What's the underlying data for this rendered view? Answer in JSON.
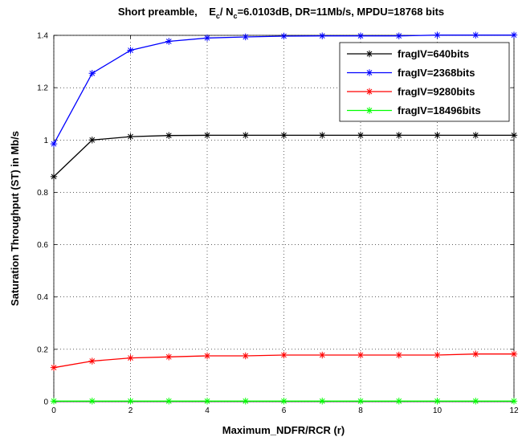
{
  "chart_data": {
    "type": "line",
    "title": {
      "prefix": "Short preamble,",
      "e": "E",
      "c1": "c",
      "slash": "/ N",
      "c2": "c",
      "rest": "=6.0103dB, DR=11Mb/s, MPDU=18768 bits"
    },
    "xlabel": "Maximum_NDFR/RCR (r)",
    "ylabel": "Saturation Throughput (ST) in Mb/s",
    "xlim": [
      0,
      12
    ],
    "ylim": [
      0,
      1.4
    ],
    "xticks": [
      0,
      2,
      4,
      6,
      8,
      10,
      12
    ],
    "yticks": [
      0,
      0.2,
      0.4,
      0.6,
      0.8,
      1,
      1.2,
      1.4
    ],
    "xtick_labels": [
      "0",
      "2",
      "4",
      "6",
      "8",
      "10",
      "12"
    ],
    "ytick_labels": [
      "0",
      "0.2",
      "0.4",
      "0.6",
      "0.8",
      "1",
      "1.2",
      "1.4"
    ],
    "grid": true,
    "legend_position": "top-right",
    "x": [
      0,
      1,
      2,
      3,
      4,
      5,
      6,
      7,
      8,
      9,
      10,
      11,
      12
    ],
    "series": [
      {
        "name": "fragIV=640bits",
        "color": "#000000",
        "values": [
          0.86,
          1.0,
          1.013,
          1.017,
          1.018,
          1.018,
          1.018,
          1.018,
          1.018,
          1.018,
          1.018,
          1.018,
          1.018
        ]
      },
      {
        "name": "fragIV=2368bits",
        "color": "#0000ff",
        "values": [
          0.985,
          1.255,
          1.343,
          1.377,
          1.39,
          1.394,
          1.397,
          1.398,
          1.398,
          1.398,
          1.401,
          1.401,
          1.401
        ]
      },
      {
        "name": "fragIV=9280bits",
        "color": "#ff0000",
        "values": [
          0.13,
          0.155,
          0.167,
          0.171,
          0.175,
          0.175,
          0.178,
          0.178,
          0.178,
          0.178,
          0.178,
          0.182,
          0.182
        ]
      },
      {
        "name": "fragIV=18496bits",
        "color": "#00ff00",
        "values": [
          0.002,
          0.002,
          0.002,
          0.002,
          0.002,
          0.002,
          0.002,
          0.002,
          0.002,
          0.002,
          0.002,
          0.002,
          0.002
        ]
      }
    ]
  }
}
